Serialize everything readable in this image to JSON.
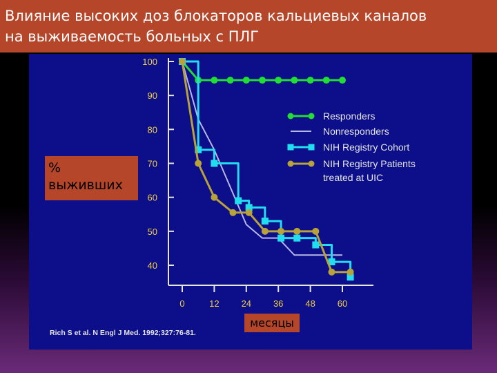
{
  "slide": {
    "title_line1": "Влияние высоких доз блокаторов кальциевых каналов",
    "title_line2": "на выживаемость больных с ПЛГ",
    "y_label_line1": "%",
    "y_label_line2": "выживших",
    "x_label": "месяцы",
    "citation": "Rich S et al. N Engl J Med. 1992;327:76-81."
  },
  "colors": {
    "title_bar": "#b5462a",
    "panel": "#0d0f8a",
    "axis": "#e6e6e6",
    "tick_text": "#f0d040",
    "legend_text": "#e6e6e6"
  },
  "chart_data": {
    "type": "line",
    "xlabel": "месяцы",
    "ylabel": "% выживших",
    "xlim": [
      0,
      60
    ],
    "ylim": [
      40,
      100
    ],
    "x_ticks": [
      0,
      12,
      24,
      36,
      48,
      60
    ],
    "y_ticks": [
      100,
      90,
      80,
      70,
      60,
      50,
      40
    ],
    "legend_position": "right",
    "grid": false,
    "series": [
      {
        "name": "Responders",
        "color": "#22dd33",
        "marker": "circle",
        "step": false,
        "x": [
          0,
          6,
          12,
          18,
          24,
          30,
          36,
          42,
          48,
          54,
          60
        ],
        "y": [
          100,
          94.5,
          94.5,
          94.5,
          94.5,
          94.5,
          94.5,
          94.5,
          94.5,
          94.5,
          94.5
        ]
      },
      {
        "name": "Nonresponders",
        "color": "#b8b8e8",
        "marker": "none",
        "step": false,
        "x": [
          0,
          6,
          12,
          18,
          24,
          30,
          36,
          42,
          48,
          54,
          60
        ],
        "y": [
          100,
          83,
          74,
          63,
          52,
          48,
          48,
          43,
          43,
          43,
          43
        ]
      },
      {
        "name": "NIH Registry Cohort",
        "color": "#22ddee",
        "marker": "square",
        "step": true,
        "x": [
          0,
          6,
          12,
          21,
          25,
          31,
          37,
          43,
          50,
          56,
          63
        ],
        "y": [
          100,
          74,
          70,
          59,
          57,
          53,
          48,
          48,
          46,
          41,
          36.5
        ]
      },
      {
        "name": "NIH Registry Patients treated at UIC",
        "color": "#b8a23a",
        "marker": "circle",
        "step": false,
        "x": [
          0,
          6,
          12,
          19,
          25,
          31,
          37,
          43,
          50,
          56,
          63
        ],
        "y": [
          100,
          70,
          60,
          55.5,
          55.5,
          50,
          50,
          50,
          50,
          38,
          38
        ]
      }
    ],
    "legend": [
      {
        "label_lines": [
          "Responders"
        ]
      },
      {
        "label_lines": [
          "Nonresponders"
        ]
      },
      {
        "label_lines": [
          "NIH Registry Cohort"
        ]
      },
      {
        "label_lines": [
          "NIH Registry Patients",
          "treated at UIC"
        ]
      }
    ]
  }
}
